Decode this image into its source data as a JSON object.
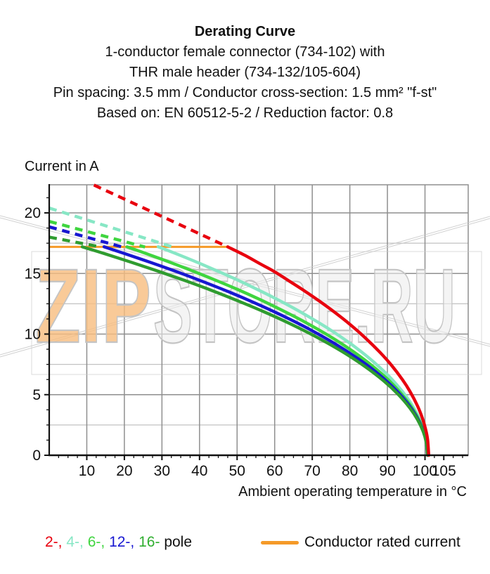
{
  "header": {
    "lines": [
      "Derating Curve",
      "1-conductor female connector (734-102) with",
      "THR male header (734-132/105-604)",
      "Pin spacing: 3.5 mm / Conductor cross-section: 1.5 mm² \"f-st\"",
      "Based on: EN 60512-5-2 / Reduction factor: 0.8"
    ]
  },
  "watermark": {
    "part1": "ZIP",
    "part2": "STORE.RU",
    "part1_fill": "#f8bd7e",
    "part2_fill": "#ececec",
    "outline_color": "#c4c4c4",
    "frame_color": "#cccccc",
    "hairline_color": "#c8c8c8"
  },
  "legend": {
    "pole_items": [
      {
        "label": "2-,",
        "color": "#e8000e"
      },
      {
        "label": "4-,",
        "color": "#87e7c5"
      },
      {
        "label": "6-,",
        "color": "#3fd53f"
      },
      {
        "label": "12-,",
        "color": "#1717d1"
      },
      {
        "label": "16-",
        "color": "#2fae2f"
      }
    ],
    "pole_suffix": "pole",
    "rated_label": "Conductor rated current",
    "rated_color": "#f59a28"
  },
  "chart_data": {
    "type": "line",
    "title": "Derating Curve",
    "xlabel": "Ambient operating temperature in °C",
    "ylabel": "Current in A",
    "xlim": [
      0,
      111.5
    ],
    "ylim": [
      0,
      22.32
    ],
    "grid": true,
    "x_gridlines": [
      10,
      20,
      30,
      40,
      50,
      60,
      70,
      80,
      90,
      100
    ],
    "x_major_ticks": [
      10,
      20,
      30,
      40,
      50,
      60,
      70,
      80,
      90,
      100,
      105
    ],
    "x_tick_labels": [
      "10",
      "20",
      "30",
      "40",
      "50",
      "60",
      "70",
      "80",
      "90",
      "100",
      "105"
    ],
    "x_minor_tick_step": 2.5,
    "y_major_gridlines": [
      5,
      10,
      15,
      20
    ],
    "y_minor_gridlines": [
      2.5,
      7.5,
      12.5,
      17.5
    ],
    "y_tick_values": [
      0,
      5,
      10,
      15,
      20
    ],
    "y_tick_labels": [
      "0",
      "5",
      "10",
      "15",
      "20"
    ],
    "y_minor_tick_step": 1.25,
    "colors": {
      "grid_major": "#8f8f8f",
      "grid_minor": "#c2c2c2",
      "axis": "#111111"
    },
    "rated_current_line": {
      "value": 17.2,
      "x_start": 0,
      "x_end": 47.5,
      "color": "#f59a28",
      "label": "Conductor rated current"
    },
    "series": [
      {
        "name": "4-pole",
        "poles": 4,
        "color": "#87e7c5",
        "dashed_points": [
          [
            0,
            20.4
          ],
          [
            33,
            17.18
          ]
        ],
        "solid_points": [
          [
            29,
            17.21
          ],
          [
            35,
            16.48
          ],
          [
            40,
            15.84
          ],
          [
            45,
            15.17
          ],
          [
            50,
            14.48
          ],
          [
            55,
            13.74
          ],
          [
            60,
            12.97
          ],
          [
            65,
            12.15
          ],
          [
            70,
            11.26
          ],
          [
            75,
            10.31
          ],
          [
            80,
            9.25
          ],
          [
            84,
            8.31
          ],
          [
            88,
            7.24
          ],
          [
            91,
            6.33
          ],
          [
            94,
            5.26
          ],
          [
            96,
            4.41
          ],
          [
            98,
            3.34
          ],
          [
            99.4,
            2.32
          ],
          [
            100.2,
            1.44
          ],
          [
            100.7,
            0
          ]
        ]
      },
      {
        "name": "6-pole",
        "poles": 6,
        "color": "#3fd53f",
        "dashed_points": [
          [
            0,
            19.3
          ],
          [
            25.5,
            17.18
          ]
        ],
        "solid_points": [
          [
            20.7,
            17.2
          ],
          [
            26,
            16.62
          ],
          [
            32,
            15.94
          ],
          [
            38,
            15.23
          ],
          [
            44,
            14.48
          ],
          [
            50,
            13.7
          ],
          [
            56,
            12.86
          ],
          [
            62,
            11.96
          ],
          [
            68,
            11.0
          ],
          [
            74,
            9.94
          ],
          [
            80,
            8.75
          ],
          [
            85,
            7.62
          ],
          [
            89,
            6.58
          ],
          [
            92,
            5.67
          ],
          [
            95,
            4.59
          ],
          [
            97,
            3.7
          ],
          [
            98.7,
            2.72
          ],
          [
            99.8,
            1.82
          ],
          [
            100.4,
            1.05
          ],
          [
            100.7,
            0
          ]
        ]
      },
      {
        "name": "12-pole",
        "poles": 12,
        "color": "#1717d1",
        "dashed_points": [
          [
            0,
            18.85
          ],
          [
            19.5,
            17.18
          ]
        ],
        "solid_points": [
          [
            14.6,
            17.2
          ],
          [
            20,
            16.65
          ],
          [
            27,
            15.91
          ],
          [
            34,
            15.14
          ],
          [
            41,
            14.32
          ],
          [
            48,
            13.46
          ],
          [
            55,
            12.53
          ],
          [
            62,
            11.53
          ],
          [
            69,
            10.44
          ],
          [
            76,
            9.21
          ],
          [
            82,
            8.01
          ],
          [
            87,
            6.86
          ],
          [
            91,
            5.77
          ],
          [
            94,
            4.8
          ],
          [
            96.5,
            3.8
          ],
          [
            98.3,
            2.87
          ],
          [
            99.6,
            1.94
          ],
          [
            100.3,
            1.17
          ],
          [
            100.7,
            0
          ]
        ]
      },
      {
        "name": "16-pole",
        "poles": 16,
        "color": "#2f9c2f",
        "dashed_points": [
          [
            0,
            18.0
          ],
          [
            13.5,
            17.2
          ]
        ],
        "solid_points": [
          [
            8.8,
            17.2
          ],
          [
            15,
            16.61
          ],
          [
            22,
            15.91
          ],
          [
            29,
            15.19
          ],
          [
            36,
            14.43
          ],
          [
            43,
            13.63
          ],
          [
            50,
            12.77
          ],
          [
            57,
            11.86
          ],
          [
            64,
            10.87
          ],
          [
            71,
            9.78
          ],
          [
            78,
            8.55
          ],
          [
            84,
            7.33
          ],
          [
            89,
            6.14
          ],
          [
            93,
            4.98
          ],
          [
            96,
            3.89
          ],
          [
            98,
            2.95
          ],
          [
            99.5,
            1.97
          ],
          [
            100.3,
            1.1
          ],
          [
            100.7,
            0
          ]
        ]
      },
      {
        "name": "2-pole",
        "poles": 2,
        "color": "#e8000e",
        "dashed_points": [
          [
            11.9,
            22.3
          ],
          [
            47.5,
            17.2
          ]
        ],
        "solid_points": [
          [
            47.5,
            17.2
          ],
          [
            52,
            16.51
          ],
          [
            56,
            15.82
          ],
          [
            60,
            15.14
          ],
          [
            64,
            14.35
          ],
          [
            68,
            13.55
          ],
          [
            72,
            12.7
          ],
          [
            76,
            11.79
          ],
          [
            80,
            10.81
          ],
          [
            84,
            9.72
          ],
          [
            88,
            8.5
          ],
          [
            91,
            7.46
          ],
          [
            94,
            6.24
          ],
          [
            96,
            5.27
          ],
          [
            98,
            4.08
          ],
          [
            99.3,
            3.07
          ],
          [
            100.2,
            2.11
          ],
          [
            100.7,
            1.29
          ],
          [
            101,
            0
          ]
        ]
      }
    ]
  }
}
